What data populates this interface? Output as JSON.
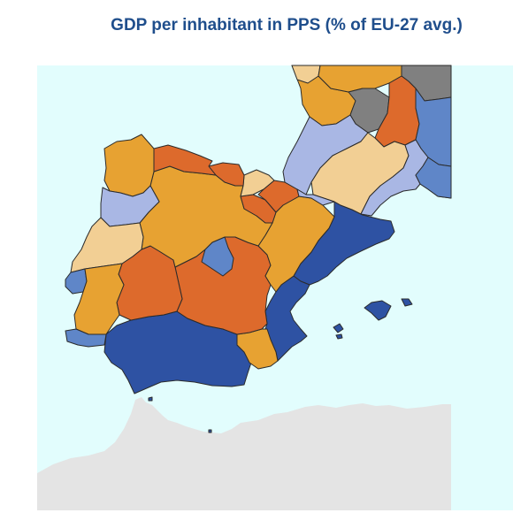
{
  "title": "GDP per inhabitant in PPS (% of EU-27 avg.)",
  "colors": {
    "sea_light": "#e2fdfd",
    "sea_right": "#e2fdfd",
    "land_outside": "#e4e4e4",
    "no_data": "#808080",
    "very_low": "#2e52a3",
    "low": "#5f86c8",
    "below_avg": "#a9b7e4",
    "near_avg": "#f2cf94",
    "above_avg": "#e7a232",
    "high": "#dd6a2c"
  },
  "regions": [
    {
      "name": "Galicia",
      "class": "above_avg"
    },
    {
      "name": "Asturias",
      "class": "high"
    },
    {
      "name": "Cantabria",
      "class": "high"
    },
    {
      "name": "Pais Vasco",
      "class": "near_avg"
    },
    {
      "name": "Navarra",
      "class": "high"
    },
    {
      "name": "La Rioja",
      "class": "high"
    },
    {
      "name": "Aragon",
      "class": "above_avg"
    },
    {
      "name": "Castilla y Leon",
      "class": "above_avg"
    },
    {
      "name": "Madrid",
      "class": "low"
    },
    {
      "name": "Castilla-La Mancha",
      "class": "high"
    },
    {
      "name": "Extremadura",
      "class": "high"
    },
    {
      "name": "Cataluna",
      "class": "very_low"
    },
    {
      "name": "Comunitat Valenciana",
      "class": "very_low"
    },
    {
      "name": "Illes Balears",
      "class": "very_low"
    },
    {
      "name": "Andalucia",
      "class": "very_low"
    },
    {
      "name": "Region de Murcia",
      "class": "above_avg"
    },
    {
      "name": "Norte",
      "class": "below_avg"
    },
    {
      "name": "Centro PT",
      "class": "near_avg"
    },
    {
      "name": "Lisboa",
      "class": "low"
    },
    {
      "name": "Alentejo",
      "class": "above_avg"
    },
    {
      "name": "Algarve",
      "class": "low"
    },
    {
      "name": "Aquitaine",
      "class": "above_avg"
    },
    {
      "name": "Midi-Pyrenees",
      "class": "below_avg"
    },
    {
      "name": "Languedoc-Roussillon",
      "class": "near_avg"
    },
    {
      "name": "Limousin",
      "class": "no_data"
    },
    {
      "name": "Auvergne",
      "class": "high"
    },
    {
      "name": "Rhone-Alpes",
      "class": "below_avg"
    },
    {
      "name": "PACA",
      "class": "low"
    },
    {
      "name": "Poitou-Charentes",
      "class": "near_avg"
    },
    {
      "name": "Centre FR",
      "class": "above_avg"
    },
    {
      "name": "Bourgogne",
      "class": "no_data"
    }
  ]
}
